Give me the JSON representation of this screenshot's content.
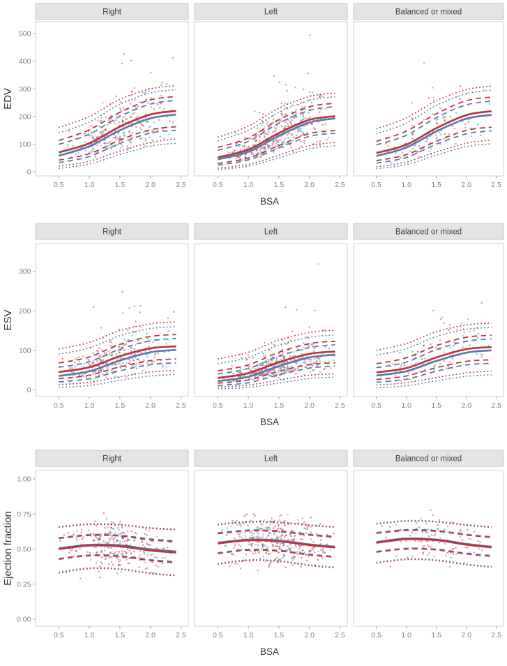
{
  "figure": {
    "xlabel": "BSA",
    "x_ticks": [
      "0.5",
      "1.0",
      "1.5",
      "2.0",
      "2.5"
    ],
    "x_tick_values": [
      0.5,
      1.0,
      1.5,
      2.0,
      2.5
    ],
    "xlim": [
      0.12,
      2.62
    ],
    "facets": [
      "Right",
      "Left",
      "Balanced or mixed"
    ],
    "legend": "none",
    "grid": "off",
    "colors": {
      "red": "#bf323c",
      "blue": "#4e7fb0",
      "strip_bg": "#e4e4e4",
      "strip_border": "#c9c9c9",
      "panel_border": "#d2d2d2",
      "tick_text": "#7d7d7d",
      "axis_title_text": "#333333",
      "strip_text": "#404040"
    }
  },
  "chart_data": [
    {
      "type": "scatter",
      "ylabel": "EDV",
      "y_ticks": [
        "0",
        "100",
        "200",
        "300",
        "400",
        "500"
      ],
      "y_tick_values": [
        0,
        100,
        200,
        300,
        400,
        500
      ],
      "ylim": [
        -15,
        543
      ],
      "curve_x": [
        0.5,
        1.0,
        1.5,
        2.0,
        2.42
      ],
      "line_styles": {
        "p50": "solid",
        "p25": "dashed",
        "p75": "dashed",
        "p05": "dotted",
        "p95": "dotted"
      },
      "panels": [
        {
          "facet": "Right",
          "n_points": 290,
          "seed": 101,
          "noise_kind": "lognormal",
          "noise_sd": 0.42,
          "red_fraction": 0.56,
          "groups": {
            "red": {
              "p05": [
                20,
                38,
                75,
                106,
                118
              ],
              "p25": [
                42,
                65,
                115,
                152,
                163
              ],
              "p50": [
                70,
                103,
                163,
                207,
                220
              ],
              "p75": [
                113,
                152,
                215,
                260,
                272
              ],
              "p95": [
                160,
                200,
                262,
                300,
                312
              ]
            },
            "blue": {
              "p05": [
                12,
                28,
                62,
                93,
                103
              ],
              "p25": [
                33,
                55,
                103,
                140,
                150
              ],
              "p50": [
                58,
                92,
                150,
                193,
                207
              ],
              "p75": [
                99,
                136,
                200,
                245,
                258
              ],
              "p95": [
                140,
                180,
                244,
                285,
                297
              ]
            }
          }
        },
        {
          "facet": "Left",
          "n_points": 385,
          "seed": 102,
          "noise_kind": "lognormal",
          "noise_sd": 0.42,
          "red_fraction": 0.56,
          "groups": {
            "red": {
              "p05": [
                13,
                27,
                60,
                95,
                106
              ],
              "p25": [
                30,
                50,
                95,
                138,
                149
              ],
              "p50": [
                52,
                80,
                140,
                188,
                201
              ],
              "p75": [
                88,
                122,
                188,
                235,
                248
              ],
              "p95": [
                125,
                165,
                230,
                272,
                285
              ]
            },
            "blue": {
              "p05": [
                8,
                20,
                50,
                83,
                94
              ],
              "p25": [
                24,
                43,
                86,
                128,
                139
              ],
              "p50": [
                45,
                72,
                130,
                178,
                193
              ],
              "p75": [
                78,
                110,
                176,
                222,
                236
              ],
              "p95": [
                112,
                150,
                215,
                258,
                271
              ]
            }
          }
        },
        {
          "facet": "Balanced or mixed",
          "n_points": 105,
          "seed": 103,
          "noise_kind": "lognormal",
          "noise_sd": 0.42,
          "red_fraction": 0.56,
          "groups": {
            "red": {
              "p05": [
                18,
                35,
                72,
                103,
                115
              ],
              "p25": [
                40,
                62,
                110,
                150,
                161
              ],
              "p50": [
                68,
                98,
                158,
                205,
                219
              ],
              "p75": [
                110,
                147,
                210,
                257,
                270
              ],
              "p95": [
                155,
                195,
                257,
                297,
                310
              ]
            },
            "blue": {
              "p05": [
                11,
                26,
                60,
                91,
                101
              ],
              "p25": [
                31,
                52,
                100,
                137,
                148
              ],
              "p50": [
                57,
                88,
                146,
                192,
                206
              ],
              "p75": [
                97,
                132,
                196,
                242,
                256
              ],
              "p95": [
                137,
                176,
                240,
                282,
                295
              ]
            }
          }
        }
      ]
    },
    {
      "type": "scatter",
      "ylabel": "ESV",
      "y_ticks": [
        "0",
        "100",
        "200",
        "300"
      ],
      "y_tick_values": [
        0,
        100,
        200,
        300
      ],
      "ylim": [
        -17,
        370
      ],
      "curve_x": [
        0.5,
        1.0,
        1.5,
        2.0,
        2.42
      ],
      "line_styles": {
        "p50": "solid",
        "p25": "dashed",
        "p75": "dashed",
        "p05": "dotted",
        "p95": "dotted"
      },
      "panels": [
        {
          "facet": "Right",
          "n_points": 290,
          "seed": 201,
          "noise_kind": "lognormal",
          "noise_sd": 0.46,
          "red_fraction": 0.56,
          "groups": {
            "red": {
              "p05": [
                13,
                19,
                33,
                45,
                49
              ],
              "p25": [
                28,
                37,
                58,
                74,
                78
              ],
              "p50": [
                45,
                57,
                85,
                105,
                110
              ],
              "p75": [
                68,
                83,
                115,
                135,
                140
              ],
              "p95": [
                103,
                120,
                150,
                167,
                172
              ]
            },
            "blue": {
              "p05": [
                6,
                11,
                24,
                35,
                39
              ],
              "p25": [
                20,
                28,
                48,
                64,
                68
              ],
              "p50": [
                35,
                47,
                74,
                95,
                101
              ],
              "p75": [
                57,
                71,
                103,
                124,
                130
              ],
              "p95": [
                90,
                106,
                137,
                155,
                160
              ]
            }
          }
        },
        {
          "facet": "Left",
          "n_points": 385,
          "seed": 202,
          "noise_kind": "lognormal",
          "noise_sd": 0.46,
          "red_fraction": 0.56,
          "groups": {
            "red": {
              "p05": [
                7,
                12,
                25,
                37,
                41
              ],
              "p25": [
                17,
                25,
                47,
                64,
                68
              ],
              "p50": [
                30,
                42,
                70,
                91,
                97
              ],
              "p75": [
                48,
                63,
                95,
                117,
                123
              ],
              "p95": [
                78,
                95,
                126,
                145,
                151
              ]
            },
            "blue": {
              "p05": [
                2,
                6,
                17,
                28,
                32
              ],
              "p25": [
                11,
                18,
                38,
                55,
                60
              ],
              "p50": [
                22,
                33,
                60,
                82,
                89
              ],
              "p75": [
                40,
                54,
                85,
                107,
                114
              ],
              "p95": [
                66,
                82,
                113,
                133,
                139
              ]
            }
          }
        },
        {
          "facet": "Balanced or mixed",
          "n_points": 105,
          "seed": 203,
          "noise_kind": "lognormal",
          "noise_sd": 0.46,
          "red_fraction": 0.56,
          "groups": {
            "red": {
              "p05": [
                12,
                18,
                31,
                43,
                47
              ],
              "p25": [
                26,
                35,
                56,
                72,
                76
              ],
              "p50": [
                44,
                55,
                82,
                103,
                108
              ],
              "p75": [
                66,
                81,
                112,
                133,
                138
              ],
              "p95": [
                100,
                117,
                147,
                164,
                169
              ]
            },
            "blue": {
              "p05": [
                5,
                10,
                23,
                34,
                38
              ],
              "p25": [
                19,
                27,
                47,
                63,
                67
              ],
              "p50": [
                36,
                47,
                73,
                94,
                100
              ],
              "p75": [
                56,
                70,
                102,
                123,
                129
              ],
              "p95": [
                88,
                104,
                135,
                153,
                158
              ]
            }
          }
        }
      ]
    },
    {
      "type": "scatter",
      "ylabel": "Ejection fraction",
      "y_ticks": [
        "0.00",
        "0.25",
        "0.50",
        "0.75",
        "1.00"
      ],
      "y_tick_values": [
        0,
        0.25,
        0.5,
        0.75,
        1.0
      ],
      "ylim": [
        -0.05,
        1.06
      ],
      "curve_x": [
        0.5,
        1.0,
        1.5,
        2.0,
        2.42
      ],
      "line_styles": {
        "p50": "solid",
        "p25": "dashed",
        "p75": "dashed",
        "p05": "dotted",
        "p95": "dotted"
      },
      "panels": [
        {
          "facet": "Right",
          "n_points": 290,
          "seed": 301,
          "noise_kind": "normal",
          "noise_sd": 0.115,
          "red_fraction": 0.56,
          "groups": {
            "red": {
              "p05": [
                0.33,
                0.36,
                0.355,
                0.325,
                0.31
              ],
              "p25": [
                0.428,
                0.452,
                0.447,
                0.418,
                0.403
              ],
              "p50": [
                0.5,
                0.525,
                0.52,
                0.49,
                0.475
              ],
              "p75": [
                0.575,
                0.598,
                0.593,
                0.565,
                0.552
              ],
              "p95": [
                0.655,
                0.675,
                0.67,
                0.648,
                0.636
              ]
            },
            "blue": {
              "p05": [
                0.336,
                0.365,
                0.36,
                0.33,
                0.315
              ],
              "p25": [
                0.432,
                0.457,
                0.452,
                0.424,
                0.409
              ],
              "p50": [
                0.505,
                0.53,
                0.527,
                0.498,
                0.483
              ],
              "p75": [
                0.58,
                0.603,
                0.598,
                0.572,
                0.558
              ],
              "p95": [
                0.66,
                0.68,
                0.675,
                0.653,
                0.641
              ]
            }
          }
        },
        {
          "facet": "Left",
          "n_points": 385,
          "seed": 302,
          "noise_kind": "normal",
          "noise_sd": 0.115,
          "red_fraction": 0.56,
          "groups": {
            "red": {
              "p05": [
                0.392,
                0.418,
                0.412,
                0.382,
                0.366
              ],
              "p25": [
                0.468,
                0.492,
                0.486,
                0.458,
                0.442
              ],
              "p50": [
                0.54,
                0.562,
                0.556,
                0.528,
                0.512
              ],
              "p75": [
                0.61,
                0.63,
                0.625,
                0.6,
                0.585
              ],
              "p95": [
                0.672,
                0.692,
                0.688,
                0.668,
                0.655
              ]
            },
            "blue": {
              "p05": [
                0.397,
                0.423,
                0.417,
                0.387,
                0.371
              ],
              "p25": [
                0.473,
                0.497,
                0.491,
                0.463,
                0.447
              ],
              "p50": [
                0.545,
                0.567,
                0.561,
                0.533,
                0.517
              ],
              "p75": [
                0.615,
                0.635,
                0.63,
                0.605,
                0.59
              ],
              "p95": [
                0.677,
                0.697,
                0.693,
                0.673,
                0.66
              ]
            }
          }
        },
        {
          "facet": "Balanced or mixed",
          "n_points": 105,
          "seed": 303,
          "noise_kind": "normal",
          "noise_sd": 0.115,
          "red_fraction": 0.56,
          "groups": {
            "red": {
              "p05": [
                0.4,
                0.425,
                0.418,
                0.388,
                0.37
              ],
              "p25": [
                0.478,
                0.5,
                0.494,
                0.465,
                0.448
              ],
              "p50": [
                0.545,
                0.57,
                0.563,
                0.532,
                0.512
              ],
              "p75": [
                0.612,
                0.633,
                0.627,
                0.6,
                0.583
              ],
              "p95": [
                0.678,
                0.698,
                0.693,
                0.67,
                0.655
              ]
            },
            "blue": {
              "p05": [
                0.405,
                0.43,
                0.423,
                0.393,
                0.375
              ],
              "p25": [
                0.483,
                0.505,
                0.499,
                0.47,
                0.453
              ],
              "p50": [
                0.55,
                0.575,
                0.568,
                0.537,
                0.517
              ],
              "p75": [
                0.617,
                0.638,
                0.632,
                0.605,
                0.588
              ],
              "p95": [
                0.683,
                0.703,
                0.698,
                0.675,
                0.66
              ]
            }
          }
        }
      ]
    }
  ]
}
